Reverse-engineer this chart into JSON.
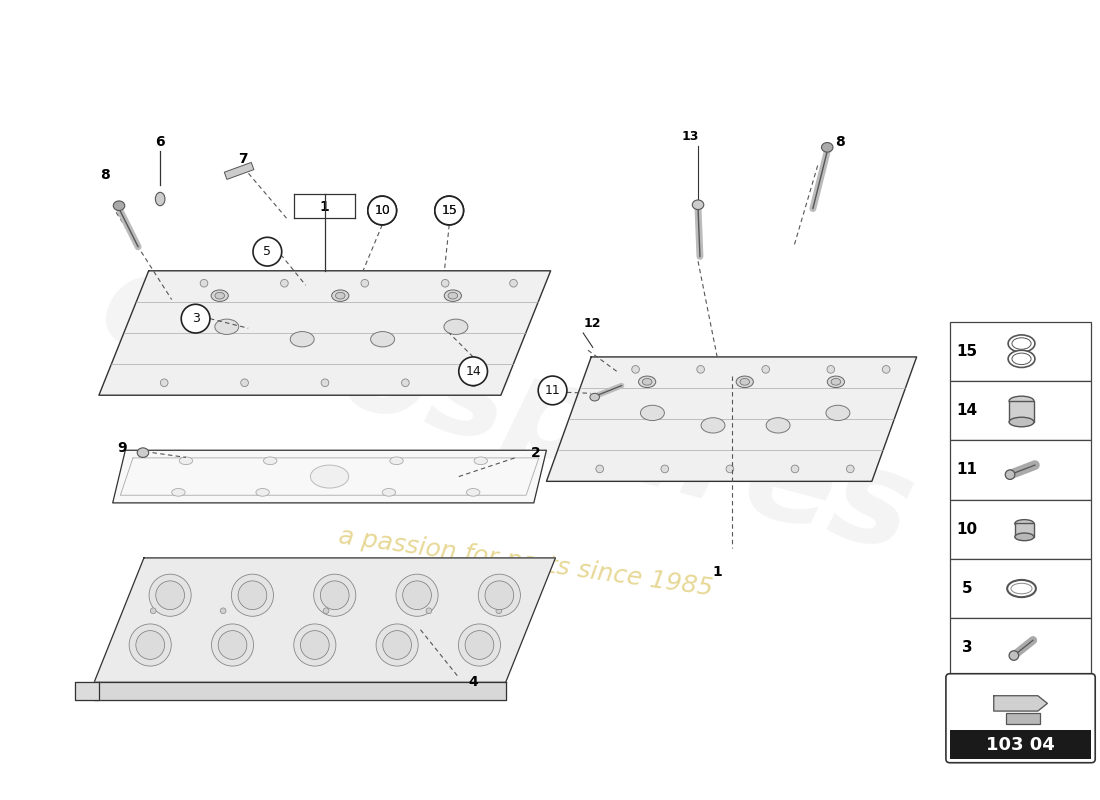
{
  "background_color": "#ffffff",
  "part_code": "103 04",
  "watermark_text1": "eurospares",
  "watermark_text2": "a passion for parts since 1985",
  "legend_items": [
    {
      "num": "15"
    },
    {
      "num": "14"
    },
    {
      "num": "11"
    },
    {
      "num": "10"
    },
    {
      "num": "5"
    },
    {
      "num": "3"
    }
  ],
  "line_color": "#333333",
  "light_gray": "#cccccc",
  "mid_gray": "#999999",
  "part_line_color": "#555555"
}
